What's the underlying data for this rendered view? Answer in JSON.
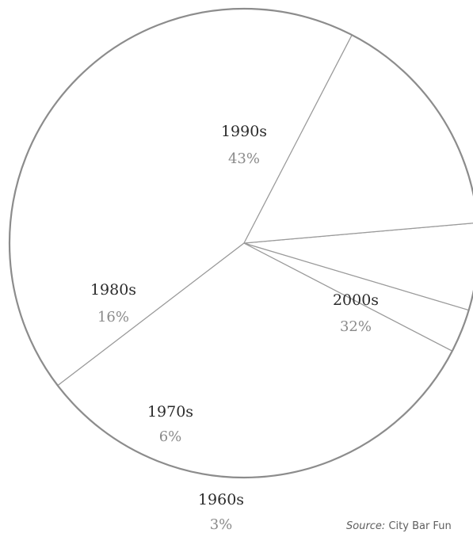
{
  "chart_data": {
    "type": "pie",
    "title": "",
    "slices": [
      {
        "label": "1990s",
        "value": 43,
        "display": "43%"
      },
      {
        "label": "2000s",
        "value": 32,
        "display": "32%"
      },
      {
        "label": "1960s",
        "value": 3,
        "display": "3%"
      },
      {
        "label": "1970s",
        "value": 6,
        "display": "6%"
      },
      {
        "label": "1980s",
        "value": 16,
        "display": "16%"
      }
    ],
    "colors": {
      "fill": "#ffffff",
      "stroke": "#9a9a9a",
      "name_text": "#2b2b2b",
      "percent_text": "#8a8a8a"
    }
  },
  "source": {
    "prefix": "Source:",
    "text": " City Bar Fun"
  }
}
